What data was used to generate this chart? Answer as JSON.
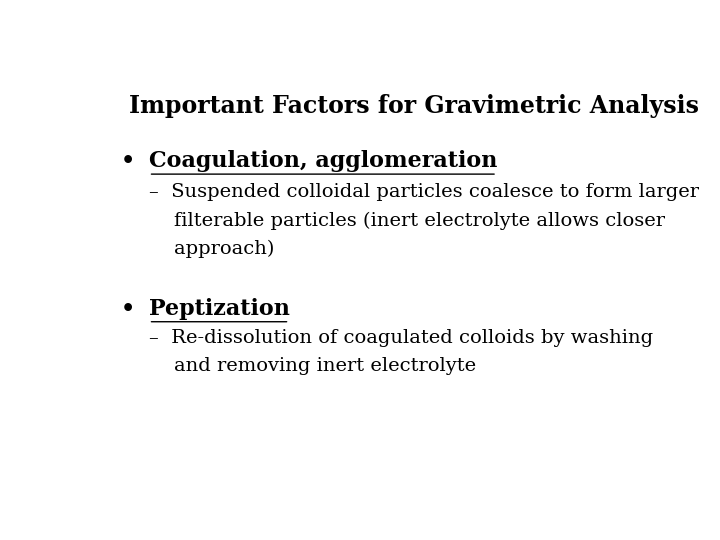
{
  "title": "Important Factors for Gravimetric Analysis",
  "background_color": "#ffffff",
  "text_color": "#000000",
  "bullet1_label": "Coagulation, agglomeration",
  "bullet1_sub_line1": "–  Suspended colloidal particles coalesce to form larger",
  "bullet1_sub_line2": "    filterable particles (inert electrolyte allows closer",
  "bullet1_sub_line3": "    approach)",
  "bullet2_label": "Peptization",
  "bullet2_sub_line1": "–  Re-dissolution of coagulated colloids by washing",
  "bullet2_sub_line2": "    and removing inert electrolyte",
  "title_fontsize": 17,
  "bullet_fontsize": 16,
  "sub_fontsize": 14,
  "font_family": "serif"
}
